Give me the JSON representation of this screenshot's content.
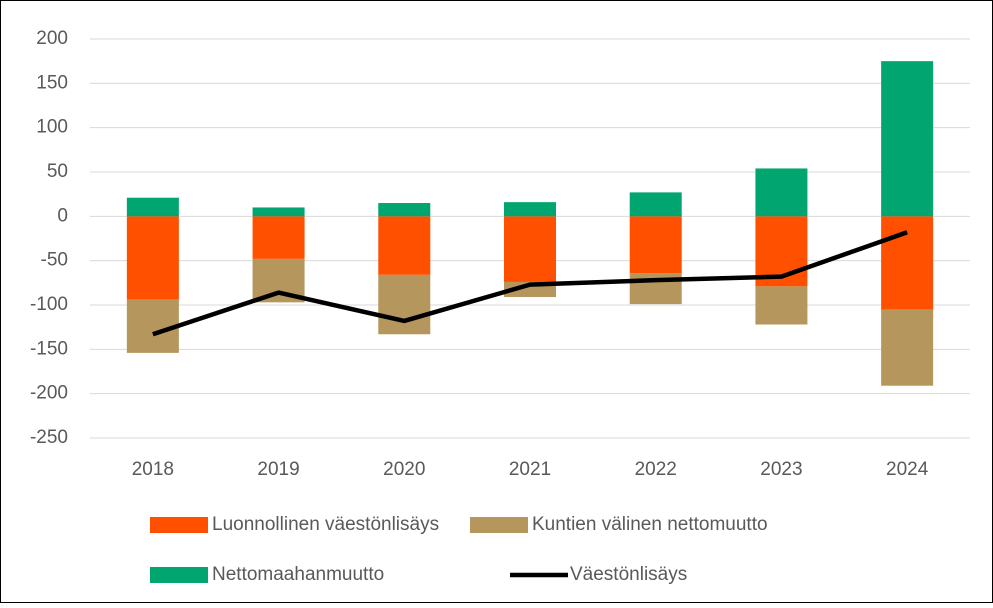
{
  "chart_data": {
    "type": "bar",
    "stacked": true,
    "categories": [
      "2018",
      "2019",
      "2020",
      "2021",
      "2022",
      "2023",
      "2024"
    ],
    "series": [
      {
        "name": "Luonnollinen väestönlisäys",
        "color": "#ff5000",
        "values": [
          -94,
          -48,
          -66,
          -74,
          -64,
          -79,
          -105
        ]
      },
      {
        "name": "Kuntien välinen nettomuutto",
        "color": "#b5965c",
        "values": [
          -60,
          -49,
          -67,
          -17,
          -35,
          -43,
          -86
        ]
      },
      {
        "name": "Nettomaahanmuutto",
        "color": "#00a56f",
        "values": [
          21,
          10,
          15,
          16,
          27,
          54,
          175
        ]
      },
      {
        "name": "Väestönlisäys",
        "color": "#000000",
        "type": "line",
        "values": [
          -133,
          -86,
          -118,
          -77,
          -72,
          -68,
          -18
        ]
      }
    ],
    "ylim": [
      -250,
      200
    ],
    "yticks": [
      -250,
      -200,
      -150,
      -100,
      -50,
      0,
      50,
      100,
      150,
      200
    ],
    "grid": true,
    "legend": "bottom"
  }
}
